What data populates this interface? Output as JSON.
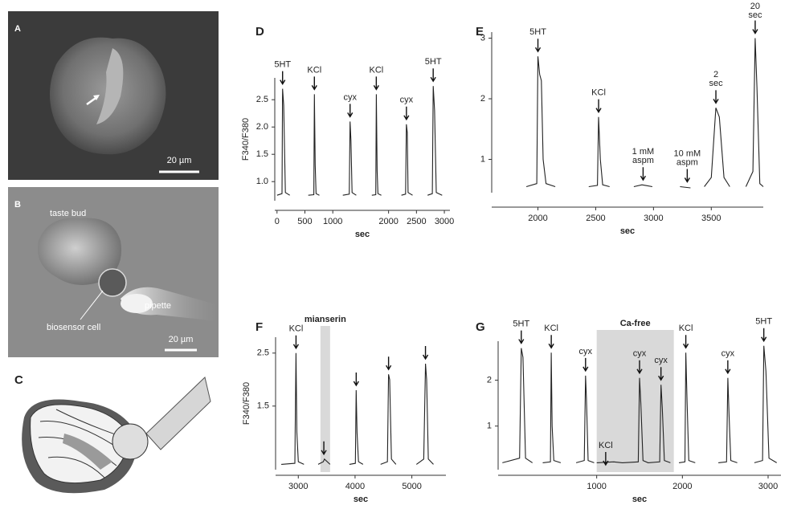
{
  "image_panels": [
    {
      "label": "A",
      "scale_bar": "20 µm"
    },
    {
      "label": "B",
      "scale_bar": "20 µm",
      "annotations": [
        "taste bud",
        "pipette",
        "biosensor cell"
      ]
    },
    {
      "label": "C"
    }
  ],
  "chart_data": [
    {
      "type": "line",
      "panel_label": "D",
      "y_label": "F340/F380",
      "x_label": "sec",
      "xlim": [
        -40,
        3100
      ],
      "xticks": [
        0,
        500,
        1000,
        2000,
        2500,
        3000
      ],
      "ylim": [
        0.65,
        2.9
      ],
      "yticks": [
        {
          "value": 1,
          "label": "1.0"
        },
        1.5,
        {
          "value": 2,
          "label": "2.0"
        },
        2.5
      ],
      "x": [
        0,
        90,
        100,
        120,
        150,
        230,
        null,
        560,
        660,
        670,
        685,
        700,
        760,
        null,
        1180,
        1295,
        1310,
        1325,
        1345,
        1420,
        null,
        1700,
        1770,
        1780,
        1795,
        1810,
        1870,
        null,
        2230,
        2305,
        2320,
        2335,
        2350,
        2430,
        null,
        2700,
        2785,
        2800,
        2825,
        2855,
        2960
      ],
      "series": [
        {
          "color": "#222222",
          "values": [
            0.75,
            0.78,
            2.7,
            2.4,
            0.8,
            0.75,
            null,
            0.75,
            0.76,
            2.6,
            1.3,
            0.78,
            0.75,
            null,
            0.75,
            0.77,
            2.1,
            1.75,
            0.8,
            0.75,
            null,
            0.75,
            0.76,
            2.6,
            1.2,
            0.78,
            0.75,
            null,
            0.75,
            0.77,
            2.05,
            1.9,
            0.8,
            0.75,
            null,
            0.75,
            0.78,
            2.75,
            2.3,
            0.8,
            0.75
          ]
        }
      ],
      "annotations": [
        {
          "lines": [
            "5HT"
          ],
          "x": 100
        },
        {
          "lines": [
            "KCl"
          ],
          "x": 670
        },
        {
          "lines": [
            "cyx"
          ],
          "x": 1310
        },
        {
          "lines": [
            "KCl"
          ],
          "x": 1780
        },
        {
          "lines": [
            "cyx"
          ],
          "x": 2320
        },
        {
          "lines": [
            "5HT"
          ],
          "x": 2800
        }
      ]
    },
    {
      "type": "line",
      "panel_label": "E",
      "x_label": "sec",
      "xlim": [
        1600,
        3950
      ],
      "xticks": [
        2000,
        2500,
        3000,
        3500
      ],
      "ylim": [
        0.45,
        3.1
      ],
      "yticks": [
        1,
        2,
        3
      ],
      "x": [
        1900,
        1990,
        2000,
        2015,
        2030,
        2045,
        2070,
        2150,
        null,
        2440,
        2515,
        2525,
        2540,
        2560,
        2620,
        null,
        2830,
        2900,
        2930,
        2990,
        null,
        3230,
        3320,
        null,
        3440,
        3500,
        3540,
        3570,
        3610,
        3660,
        null,
        3800,
        3860,
        3880,
        3895,
        3920,
        3950
      ],
      "series": [
        {
          "color": "#222222",
          "values": [
            0.55,
            0.6,
            2.7,
            2.4,
            2.3,
            1.0,
            0.6,
            0.55,
            null,
            0.55,
            0.57,
            1.7,
            1.0,
            0.58,
            0.55,
            null,
            0.55,
            0.58,
            0.57,
            0.55,
            null,
            0.55,
            0.53,
            null,
            0.55,
            0.7,
            1.85,
            1.7,
            0.7,
            0.55,
            null,
            0.55,
            0.8,
            3.0,
            2.2,
            0.6,
            0.55
          ]
        }
      ],
      "annotations": [
        {
          "lines": [
            "5HT"
          ],
          "x": 2000
        },
        {
          "lines": [
            "KCl"
          ],
          "x": 2525
        },
        {
          "lines": [
            "1 mM",
            "aspm"
          ],
          "x": 2910
        },
        {
          "lines": [
            "10 mM",
            "aspm"
          ],
          "x": 3292
        },
        {
          "lines": [
            "2",
            "sec"
          ],
          "x": 3540
        },
        {
          "lines": [
            "20",
            "sec"
          ],
          "x": 3880
        }
      ]
    },
    {
      "type": "line",
      "panel_label": "F",
      "y_label": "F340/F380",
      "x_label": "sec",
      "xlim": [
        2600,
        5600
      ],
      "xticks": [
        3000,
        4000,
        5000
      ],
      "ylim": [
        0.3,
        2.8
      ],
      "yticks": [
        1.5,
        2.5
      ],
      "shade": {
        "label": "mianserin",
        "from": 3390,
        "to": 3560
      },
      "x": [
        2700,
        2940,
        2960,
        2975,
        3000,
        3100,
        null,
        3350,
        3440,
        3460,
        3560,
        null,
        3900,
        4005,
        4020,
        4035,
        4060,
        4140,
        null,
        4450,
        4570,
        4590,
        4610,
        4640,
        4720,
        null,
        5080,
        5210,
        5240,
        5260,
        5290,
        5380
      ],
      "series": [
        {
          "color": "#222222",
          "values": [
            0.4,
            0.42,
            2.5,
            1.0,
            0.45,
            0.4,
            null,
            0.4,
            0.45,
            0.5,
            0.4,
            null,
            0.4,
            0.42,
            1.8,
            1.0,
            0.45,
            0.4,
            null,
            0.4,
            0.45,
            2.1,
            2.0,
            0.5,
            0.4,
            null,
            0.4,
            0.5,
            2.3,
            2.0,
            0.5,
            0.4
          ]
        }
      ],
      "annotations": [
        {
          "lines": [
            "KCl"
          ],
          "x": 2960
        },
        {
          "lines": [],
          "x": 3450
        },
        {
          "lines": [],
          "x": 4020
        },
        {
          "lines": [],
          "x": 4590
        },
        {
          "lines": [],
          "x": 5240
        }
      ]
    },
    {
      "type": "line",
      "panel_label": "G",
      "x_label": "sec",
      "xlim": [
        -150,
        3150
      ],
      "xticks": [
        1000,
        2000,
        3000
      ],
      "ylim": [
        0.05,
        2.85
      ],
      "yticks": [
        1,
        2
      ],
      "shade": {
        "label": "Ca-free",
        "from": 1000,
        "to": 1900
      },
      "x": [
        -100,
        100,
        120,
        140,
        170,
        250,
        null,
        370,
        460,
        470,
        480,
        500,
        580,
        null,
        760,
        855,
        870,
        880,
        900,
        970,
        null,
        1000,
        1200,
        1300,
        1485,
        1500,
        1515,
        1540,
        1600,
        1735,
        1750,
        1765,
        1790,
        1860,
        null,
        1960,
        2030,
        2040,
        2055,
        2075,
        2150,
        null,
        2420,
        2515,
        2530,
        2545,
        2565,
        2640,
        null,
        2840,
        2935,
        2950,
        2975,
        3010,
        3100
      ],
      "series": [
        {
          "color": "#222222",
          "values": [
            0.2,
            0.3,
            2.7,
            2.5,
            0.3,
            0.2,
            null,
            0.2,
            0.22,
            2.6,
            1.0,
            0.25,
            0.2,
            null,
            0.2,
            0.25,
            2.1,
            1.6,
            0.25,
            0.2,
            null,
            0.2,
            0.22,
            0.2,
            0.22,
            2.05,
            1.5,
            0.25,
            0.2,
            0.22,
            1.9,
            1.4,
            0.25,
            0.2,
            null,
            0.2,
            0.22,
            2.6,
            1.5,
            0.25,
            0.2,
            null,
            0.2,
            0.22,
            2.05,
            1.2,
            0.25,
            0.2,
            null,
            0.2,
            0.25,
            2.75,
            2.2,
            0.3,
            0.2
          ]
        }
      ],
      "annotations": [
        {
          "lines": [
            "5HT"
          ],
          "x": 120
        },
        {
          "lines": [
            "KCl"
          ],
          "x": 470
        },
        {
          "lines": [
            "cyx"
          ],
          "x": 870
        },
        {
          "lines": [
            "KCl"
          ],
          "x": 1105
        },
        {
          "lines": [
            "cyx"
          ],
          "x": 1500
        },
        {
          "lines": [
            "cyx"
          ],
          "x": 1750
        },
        {
          "lines": [
            "KCl"
          ],
          "x": 2040
        },
        {
          "lines": [
            "cyx"
          ],
          "x": 2530
        },
        {
          "lines": [
            "5HT"
          ],
          "x": 2950
        }
      ]
    }
  ]
}
